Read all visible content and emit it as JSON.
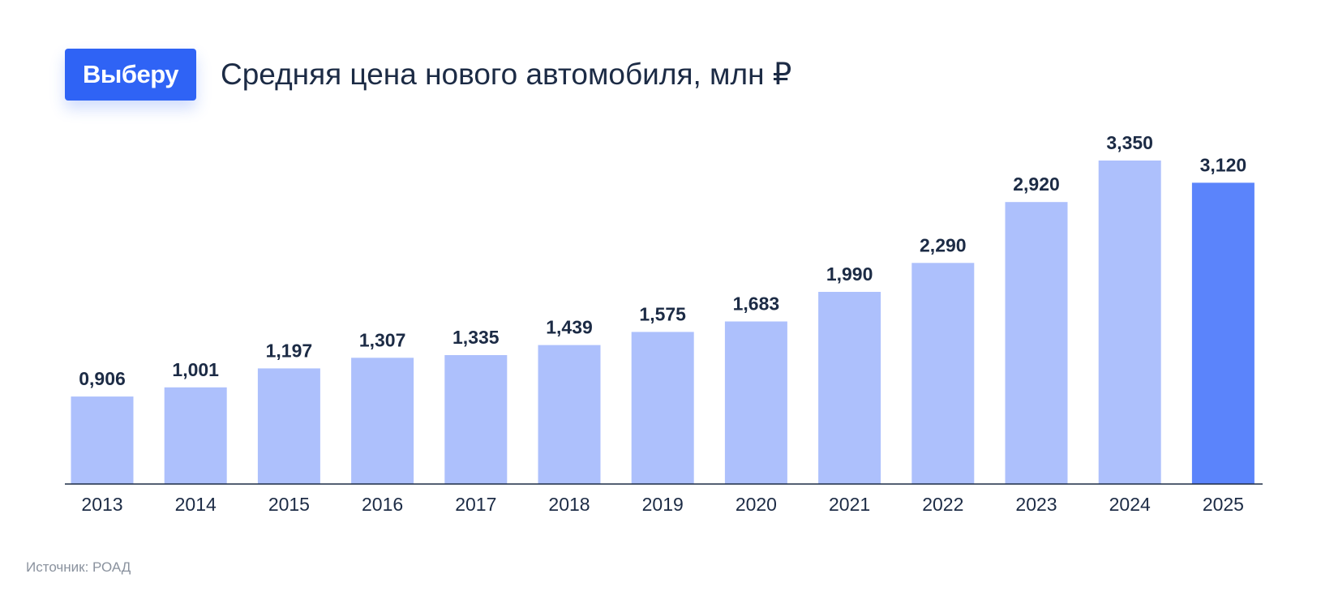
{
  "brand": {
    "logo_text": "Выберу"
  },
  "title": "Средняя цена нового автомобиля, млн ₽",
  "source": "Источник: РОАД",
  "colors": {
    "bar": "#adc0fc",
    "bar_highlight": "#5b84fb",
    "axis": "#1c2b45",
    "text": "#1c2b45",
    "logo_bg": "#2f63f5"
  },
  "chart_data": {
    "type": "bar",
    "title": "Средняя цена нового автомобиля, млн ₽",
    "xlabel": "",
    "ylabel": "",
    "categories": [
      "2013",
      "2014",
      "2015",
      "2016",
      "2017",
      "2018",
      "2019",
      "2020",
      "2021",
      "2022",
      "2023",
      "2024",
      "2025"
    ],
    "values": [
      0.906,
      1.001,
      1.197,
      1.307,
      1.335,
      1.439,
      1.575,
      1.683,
      1.99,
      2.29,
      2.92,
      3.35,
      3.12
    ],
    "value_labels": [
      "0,906",
      "1,001",
      "1,197",
      "1,307",
      "1,335",
      "1,439",
      "1,575",
      "1,683",
      "1,990",
      "2,290",
      "2,920",
      "3,350",
      "3,120"
    ],
    "highlight_category": "2025",
    "ylim": [
      0,
      3.35
    ],
    "grid": false,
    "legend": "none"
  }
}
